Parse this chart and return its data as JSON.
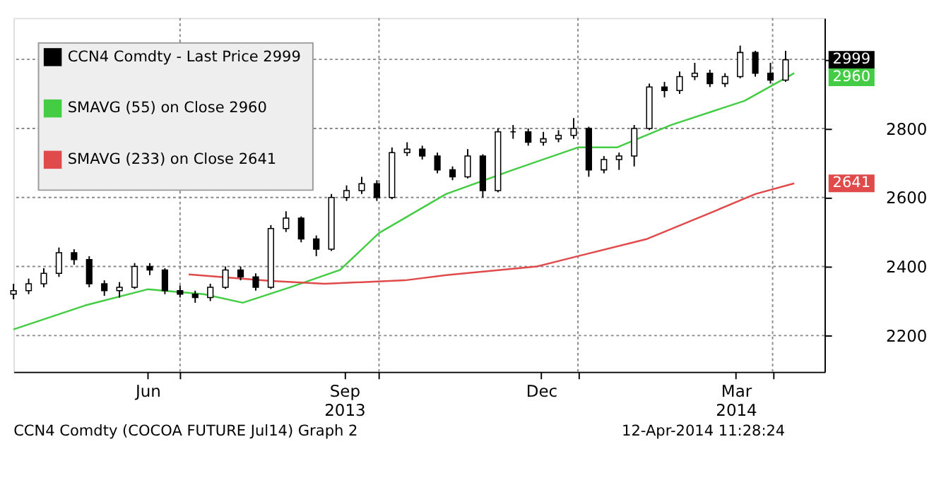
{
  "chart_data": {
    "type": "candlestick",
    "series": [
      {
        "name": "CCN4 Comdty - Last Price  2999",
        "color": "#000000",
        "x": [
          "2013-04-15",
          "2013-04-22",
          "2013-04-29",
          "2013-05-06",
          "2013-05-13",
          "2013-05-20",
          "2013-05-27",
          "2013-06-03",
          "2013-06-10",
          "2013-06-17",
          "2013-06-24",
          "2013-07-01",
          "2013-07-08",
          "2013-07-15",
          "2013-07-22",
          "2013-07-29",
          "2013-08-05",
          "2013-08-12",
          "2013-08-19",
          "2013-08-26",
          "2013-09-02",
          "2013-09-09",
          "2013-09-16",
          "2013-09-23",
          "2013-09-30",
          "2013-10-07",
          "2013-10-14",
          "2013-10-21",
          "2013-10-28",
          "2013-11-04",
          "2013-11-11",
          "2013-11-18",
          "2013-11-25",
          "2013-12-02",
          "2013-12-09",
          "2013-12-16",
          "2013-12-23",
          "2013-12-30",
          "2014-01-06",
          "2014-01-13",
          "2014-01-20",
          "2014-01-27",
          "2014-02-03",
          "2014-02-10",
          "2014-02-17",
          "2014-02-24",
          "2014-03-03",
          "2014-03-10",
          "2014-03-17",
          "2014-03-24",
          "2014-03-31",
          "2014-04-07"
        ],
        "ohlc": [
          [
            2320,
            2350,
            2305,
            2330
          ],
          [
            2330,
            2365,
            2320,
            2350
          ],
          [
            2350,
            2395,
            2340,
            2380
          ],
          [
            2380,
            2455,
            2370,
            2440
          ],
          [
            2440,
            2450,
            2405,
            2420
          ],
          [
            2420,
            2430,
            2340,
            2350
          ],
          [
            2350,
            2360,
            2315,
            2330
          ],
          [
            2330,
            2355,
            2310,
            2340
          ],
          [
            2340,
            2410,
            2335,
            2400
          ],
          [
            2400,
            2410,
            2375,
            2390
          ],
          [
            2390,
            2395,
            2320,
            2330
          ],
          [
            2330,
            2345,
            2310,
            2320
          ],
          [
            2320,
            2330,
            2295,
            2310
          ],
          [
            2310,
            2350,
            2300,
            2340
          ],
          [
            2340,
            2400,
            2335,
            2390
          ],
          [
            2390,
            2400,
            2360,
            2370
          ],
          [
            2370,
            2380,
            2330,
            2340
          ],
          [
            2340,
            2520,
            2335,
            2510
          ],
          [
            2510,
            2560,
            2500,
            2540
          ],
          [
            2540,
            2545,
            2470,
            2480
          ],
          [
            2480,
            2490,
            2430,
            2450
          ],
          [
            2450,
            2610,
            2445,
            2600
          ],
          [
            2600,
            2635,
            2590,
            2620
          ],
          [
            2620,
            2660,
            2610,
            2640
          ],
          [
            2640,
            2650,
            2590,
            2600
          ],
          [
            2600,
            2745,
            2595,
            2730
          ],
          [
            2730,
            2760,
            2720,
            2740
          ],
          [
            2740,
            2750,
            2710,
            2720
          ],
          [
            2720,
            2730,
            2670,
            2680
          ],
          [
            2680,
            2690,
            2650,
            2660
          ],
          [
            2660,
            2740,
            2655,
            2720
          ],
          [
            2720,
            2725,
            2600,
            2620
          ],
          [
            2620,
            2800,
            2615,
            2790
          ],
          [
            2790,
            2810,
            2770,
            2790
          ],
          [
            2790,
            2800,
            2750,
            2760
          ],
          [
            2760,
            2790,
            2750,
            2770
          ],
          [
            2770,
            2795,
            2760,
            2780
          ],
          [
            2780,
            2830,
            2770,
            2800
          ],
          [
            2800,
            2805,
            2660,
            2680
          ],
          [
            2680,
            2720,
            2670,
            2710
          ],
          [
            2710,
            2730,
            2680,
            2720
          ],
          [
            2720,
            2810,
            2690,
            2800
          ],
          [
            2800,
            2930,
            2795,
            2920
          ],
          [
            2920,
            2935,
            2890,
            2910
          ],
          [
            2910,
            2965,
            2900,
            2950
          ],
          [
            2950,
            2990,
            2940,
            2960
          ],
          [
            2960,
            2970,
            2920,
            2930
          ],
          [
            2930,
            2960,
            2920,
            2950
          ],
          [
            2950,
            3040,
            2945,
            3020
          ],
          [
            3020,
            3025,
            2950,
            2960
          ],
          [
            2960,
            2990,
            2930,
            2940
          ],
          [
            2940,
            3025,
            2935,
            2999
          ]
        ]
      },
      {
        "name": "SMAVG (55) on Close  2960",
        "type": "line",
        "color": "#44cc44",
        "x": [
          "2013-04-15",
          "2013-05-18",
          "2013-06-16",
          "2013-07-12",
          "2013-07-30",
          "2013-08-21",
          "2013-09-13",
          "2013-10-01",
          "2013-11-01",
          "2013-12-02",
          "2014-01-01",
          "2014-01-19",
          "2014-02-13",
          "2014-03-19",
          "2014-04-11"
        ],
        "values": [
          2218,
          2287,
          2334,
          2320,
          2295,
          2340,
          2390,
          2497,
          2610,
          2680,
          2745,
          2745,
          2810,
          2880,
          2960
        ]
      },
      {
        "name": "SMAVG (233) on Close  2641",
        "type": "line",
        "color": "#e04a4a",
        "x": [
          "2013-07-05",
          "2013-08-12",
          "2013-09-06",
          "2013-10-13",
          "2013-11-01",
          "2013-12-13",
          "2014-01-01",
          "2014-02-02",
          "2014-03-05",
          "2014-03-24",
          "2014-04-11"
        ],
        "values": [
          2377,
          2358,
          2350,
          2360,
          2375,
          2400,
          2430,
          2480,
          2560,
          2610,
          2641
        ]
      }
    ],
    "xlim": [
      "2013-04-15",
      "2014-04-25"
    ],
    "xticks": [
      {
        "value": "2013-07-01",
        "label": null
      },
      {
        "value": "2013-10-01",
        "label": null
      },
      {
        "value": "2014-01-01",
        "label": null
      },
      {
        "value": "2014-04-01",
        "label": null
      },
      {
        "value": "2013-06-16",
        "label": "Jun"
      },
      {
        "value": "2013-09-15",
        "label": "Sep\n2013"
      },
      {
        "value": "2013-12-15",
        "label": "Dec"
      },
      {
        "value": "2014-03-15",
        "label": "Mar\n2014"
      }
    ],
    "ylim": [
      2095,
      3120
    ],
    "yticks": [
      2200,
      2400,
      2600,
      2800,
      {
        "value": 3000,
        "label": null
      }
    ],
    "grid": true,
    "legend": "top left",
    "annotations": [
      "2999",
      "2960",
      "2641",
      "CCN4 Comdty (COCOA FUTURE Jul14) Graph 2",
      "12-Apr-2014 11:28:24"
    ]
  }
}
